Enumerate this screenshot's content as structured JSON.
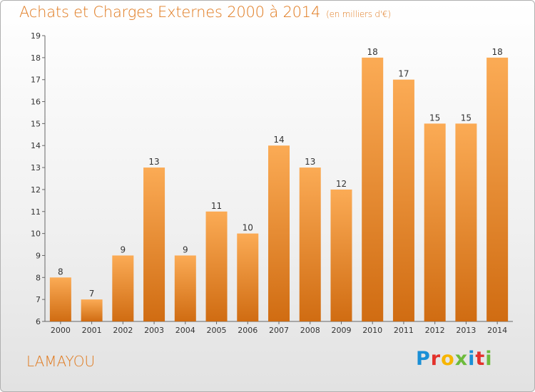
{
  "header": {
    "title": "Achats et Charges Externes 2000 à 2014",
    "subtitle": "(en milliers d'€)"
  },
  "footer": {
    "place": "LAMAYOU",
    "logo_letters": [
      "P",
      "r",
      "o",
      "x",
      "i",
      "t",
      "i"
    ],
    "logo_colors": [
      "#1a8fd6",
      "#e3312b",
      "#f7b500",
      "#6dbb3c",
      "#1a8fd6",
      "#e3312b",
      "#6dbb3c"
    ]
  },
  "colors": {
    "accent": "#e07a1f",
    "bar_light": "#fbab55",
    "bar_dark": "#d06c12"
  },
  "chart_data": {
    "type": "bar",
    "title": "Achats et Charges Externes 2000 à 2014",
    "subtitle": "(en milliers d'€)",
    "categories": [
      "2000",
      "2001",
      "2002",
      "2003",
      "2004",
      "2005",
      "2006",
      "2007",
      "2008",
      "2009",
      "2010",
      "2011",
      "2012",
      "2013",
      "2014"
    ],
    "values": [
      8,
      7,
      9,
      13,
      9,
      11,
      10,
      14,
      13,
      12,
      18,
      17,
      15,
      15,
      18
    ],
    "ylim": [
      6,
      19
    ],
    "yticks": [
      6,
      7,
      8,
      9,
      10,
      11,
      12,
      13,
      14,
      15,
      16,
      17,
      18,
      19
    ],
    "grid": false,
    "legend": "none"
  }
}
